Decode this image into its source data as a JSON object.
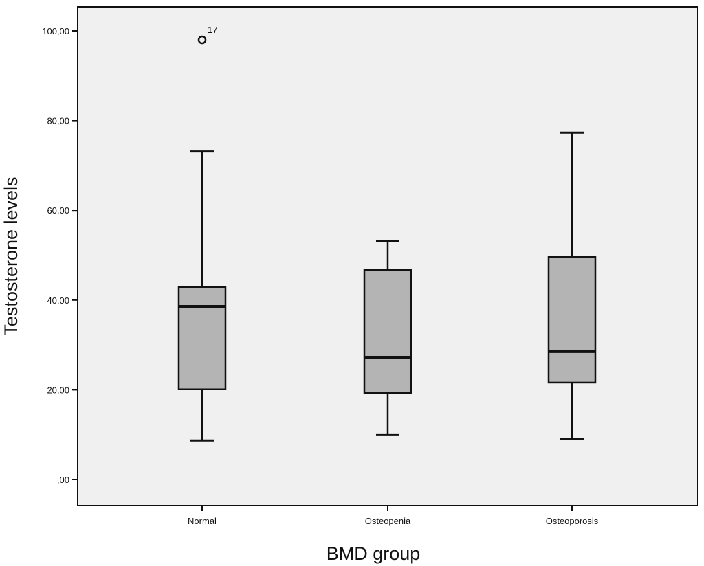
{
  "chart_data": {
    "type": "boxplot",
    "xlabel": "BMD group",
    "ylabel": "Testosterone levels",
    "ylim": [
      0,
      100
    ],
    "yticks": [
      0,
      20,
      40,
      60,
      80,
      100
    ],
    "ytick_labels": [
      ",00",
      "20,00",
      "40,00",
      "60,00",
      "80,00",
      "100,00"
    ],
    "categories": [
      "Normal",
      "Osteopenia",
      "Osteoporosis"
    ],
    "boxes": [
      {
        "category": "Normal",
        "whisker_low": 8.7,
        "q1": 20.1,
        "median": 38.6,
        "q3": 42.9,
        "whisker_high": 73.1,
        "outliers": [
          {
            "value": 98.0,
            "label": "17"
          }
        ]
      },
      {
        "category": "Osteopenia",
        "whisker_low": 9.9,
        "q1": 19.3,
        "median": 27.1,
        "q3": 46.7,
        "whisker_high": 53.1,
        "outliers": []
      },
      {
        "category": "Osteoporosis",
        "whisker_low": 9.0,
        "q1": 21.6,
        "median": 28.5,
        "q3": 49.6,
        "whisker_high": 77.3,
        "outliers": []
      }
    ],
    "grid": false,
    "legend": "none",
    "colors": {
      "plot_background": "#f0f0f0",
      "box_fill": "#b4b4b4",
      "stroke": "#111111"
    }
  }
}
